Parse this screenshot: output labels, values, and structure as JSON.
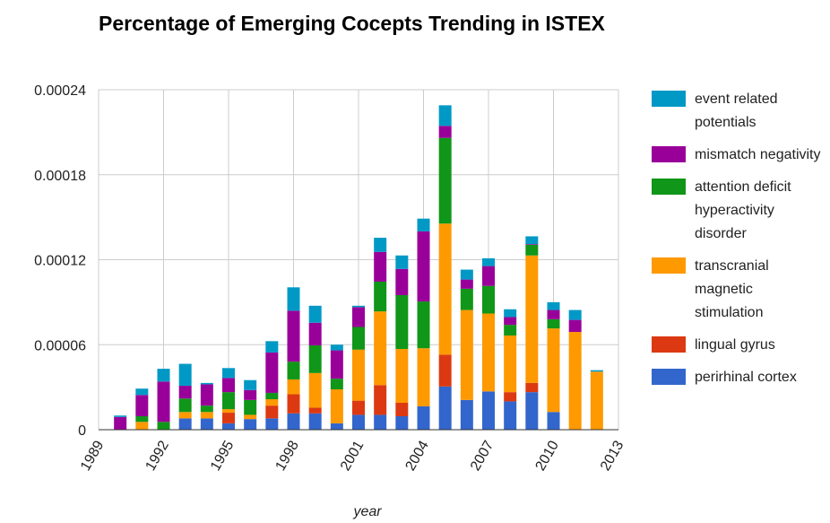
{
  "chart_data": {
    "type": "stacked_bar",
    "title": "Percentage of Emerging Cocepts Trending in ISTEX",
    "x_label": "year",
    "x": [
      1990,
      1991,
      1992,
      1993,
      1994,
      1995,
      1996,
      1997,
      1998,
      1999,
      2000,
      2001,
      2002,
      2003,
      2004,
      2005,
      2006,
      2007,
      2008,
      2009,
      2010,
      2011,
      2012
    ],
    "xlim": [
      1989,
      2013
    ],
    "xticks": [
      1989,
      1992,
      1995,
      1998,
      2001,
      2004,
      2007,
      2010,
      2013
    ],
    "ylim": [
      0,
      0.00024
    ],
    "yticks": [
      0,
      6e-05,
      0.00012,
      0.00018,
      0.00024
    ],
    "grid": true,
    "legend": "right",
    "series": [
      {
        "name": "perirhinal cortex",
        "color": "#3366cc",
        "values": [
          0,
          0,
          0,
          8e-06,
          8e-06,
          4.5e-06,
          7.5e-06,
          8e-06,
          1.15e-05,
          1.15e-05,
          4.5e-06,
          1.05e-05,
          1.05e-05,
          9.5e-06,
          1.65e-05,
          3.05e-05,
          2.1e-05,
          2.7e-05,
          2e-05,
          2.65e-05,
          1.25e-05,
          0,
          0
        ]
      },
      {
        "name": "lingual gyrus",
        "color": "#dc3912",
        "values": [
          0,
          0,
          0,
          0,
          0,
          7.5e-06,
          0,
          9e-06,
          1.35e-05,
          4e-06,
          0,
          1e-05,
          2.1e-05,
          9.5e-06,
          0,
          2.25e-05,
          0,
          0,
          6.5e-06,
          6.5e-06,
          0,
          0,
          0
        ]
      },
      {
        "name": "transcranial magnetic stimulation",
        "color": "#ff9900",
        "values": [
          0,
          5.5e-06,
          0,
          4.5e-06,
          4.5e-06,
          2.5e-06,
          3e-06,
          4.5e-06,
          1.05e-05,
          2.45e-05,
          2.4e-05,
          3.6e-05,
          5.2e-05,
          3.8e-05,
          4.1e-05,
          9.25e-05,
          6.35e-05,
          5.5e-05,
          4e-05,
          9e-05,
          5.9e-05,
          6.9e-05,
          4.1e-05
        ]
      },
      {
        "name": "attention deficit hyperactivity disorder",
        "color": "#109618",
        "values": [
          0,
          4e-06,
          5.5e-06,
          9.5e-06,
          4.5e-06,
          1.2e-05,
          1.05e-05,
          4.5e-06,
          1.25e-05,
          1.95e-05,
          7.5e-06,
          1.6e-05,
          2.1e-05,
          3.8e-05,
          3.3e-05,
          6.05e-05,
          1.5e-05,
          1.95e-05,
          7.5e-06,
          7.5e-06,
          6.5e-06,
          0,
          0
        ]
      },
      {
        "name": "mismatch negativity",
        "color": "#990099",
        "values": [
          9e-06,
          1.5e-05,
          2.85e-05,
          9e-06,
          1.5e-05,
          1e-05,
          7e-06,
          2.85e-05,
          3.6e-05,
          1.6e-05,
          2e-05,
          1.4e-05,
          2.1e-05,
          1.85e-05,
          4.95e-05,
          8.5e-06,
          6.5e-06,
          1.4e-05,
          5.5e-06,
          5e-07,
          6.5e-06,
          8.5e-06,
          0
        ]
      },
      {
        "name": "event related potentials",
        "color": "#0099c6",
        "values": [
          1e-06,
          4.5e-06,
          9e-06,
          1.55e-05,
          1e-06,
          7e-06,
          7e-06,
          8e-06,
          1.65e-05,
          1.2e-05,
          4e-06,
          1e-06,
          1e-05,
          9.5e-06,
          9e-06,
          1.45e-05,
          7e-06,
          5.5e-06,
          5.5e-06,
          5.5e-06,
          5.5e-06,
          7e-06,
          1e-06
        ]
      }
    ]
  }
}
